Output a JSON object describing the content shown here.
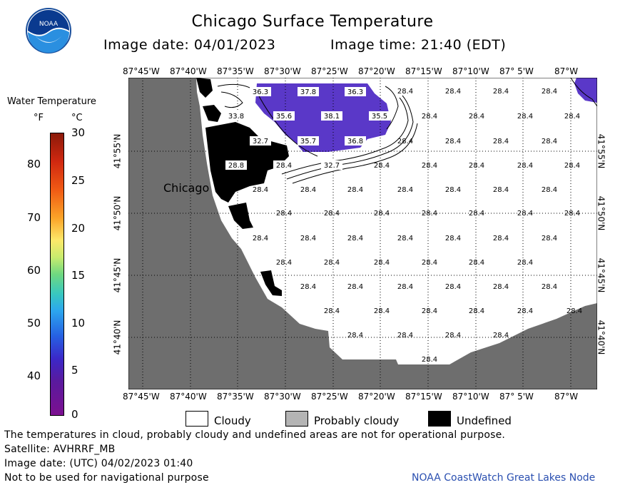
{
  "header": {
    "title": "Chicago Surface Temperature",
    "image_date": "Image date: 04/01/2023",
    "image_time": "Image time: 21:40 (EDT)"
  },
  "colorbar": {
    "title": "Water Temperature",
    "unit_f": "°F",
    "unit_c": "°C",
    "fahrenheit_ticks": [
      "80",
      "70",
      "60",
      "50",
      "40"
    ],
    "celsius_ticks": [
      "30",
      "25",
      "20",
      "15",
      "10",
      "5",
      "0"
    ]
  },
  "map": {
    "lon_labels": [
      "87°45'W",
      "87°40'W",
      "87°35'W",
      "87°30'W",
      "87°25'W",
      "87°20'W",
      "87°15'W",
      "87°10'W",
      "87° 5'W",
      "87°W"
    ],
    "lat_labels": [
      "41°55'N",
      "41°50'N",
      "41°45'N",
      "41°40'N"
    ],
    "city_label": "Chicago",
    "temperature_values": [
      "36.3",
      "37.8",
      "36.3",
      "33.8",
      "35.6",
      "38.1",
      "35.5",
      "32.7",
      "35.7",
      "36.8",
      "28.8",
      "28.4",
      "32.7",
      "28.4"
    ],
    "colors": {
      "land": "#6e6e6e",
      "water": "#ffffff",
      "warm_water": "#5a38c8",
      "undefined": "#000000"
    }
  },
  "legend": {
    "cloudy": "Cloudy",
    "probably_cloudy": "Probably cloudy",
    "undefined": "Undefined"
  },
  "footer": {
    "disclaimer": "The temperatures in cloud, probably cloudy and undefined areas are not for operational purpose.",
    "satellite": "Satellite: AVHRRF_MB",
    "utc_date": "Image date: (UTC) 04/02/2023  01:40",
    "navigation": "Not to be used for navigational purpose",
    "credit": "NOAA CoastWatch Great Lakes Node"
  }
}
